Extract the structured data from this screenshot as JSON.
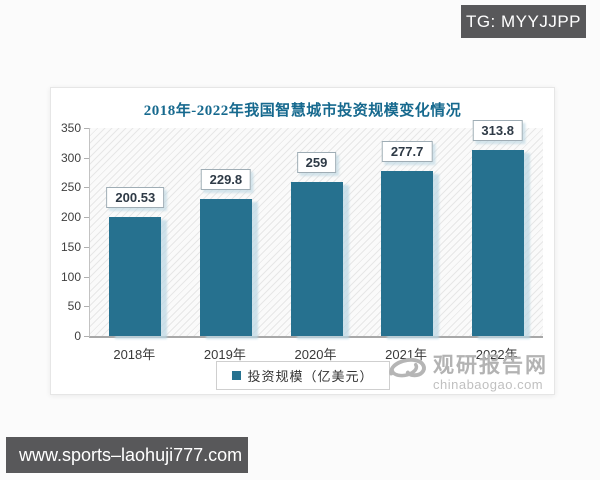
{
  "page": {
    "badge": "TG: MYYJJPP",
    "bottom_url": "www.sports–laohuji777.com"
  },
  "watermark": {
    "site_name": "观研报告网",
    "site_domain": "chinabaogao.com",
    "logo": "swirl-logo"
  },
  "colors": {
    "bar": "#26718F",
    "title_teal": "#16698E",
    "badge_bg": "#58585A",
    "bar_shadow": "#C7DCE6",
    "watermark_gray": "#B3B3B3"
  },
  "chart_data": {
    "type": "bar",
    "title": "2018年-2022年我国智慧城市投资规模变化情况",
    "categories": [
      "2018年",
      "2019年",
      "2020年",
      "2021年",
      "2022年"
    ],
    "series": [
      {
        "name": "投资规模（亿美元）",
        "values": [
          200.53,
          229.8,
          259,
          277.7,
          313.8
        ],
        "value_labels": [
          "200.53",
          "229.8",
          "259",
          "277.7",
          "313.8"
        ]
      }
    ],
    "xlabel": "",
    "ylabel": "",
    "ylim": [
      0,
      350
    ],
    "yticks": [
      0,
      50,
      100,
      150,
      200,
      250,
      300,
      350
    ],
    "grid": false,
    "plot_background": "diagonal-hatch",
    "legend_position": "bottom",
    "value_labels_boxed": true
  }
}
